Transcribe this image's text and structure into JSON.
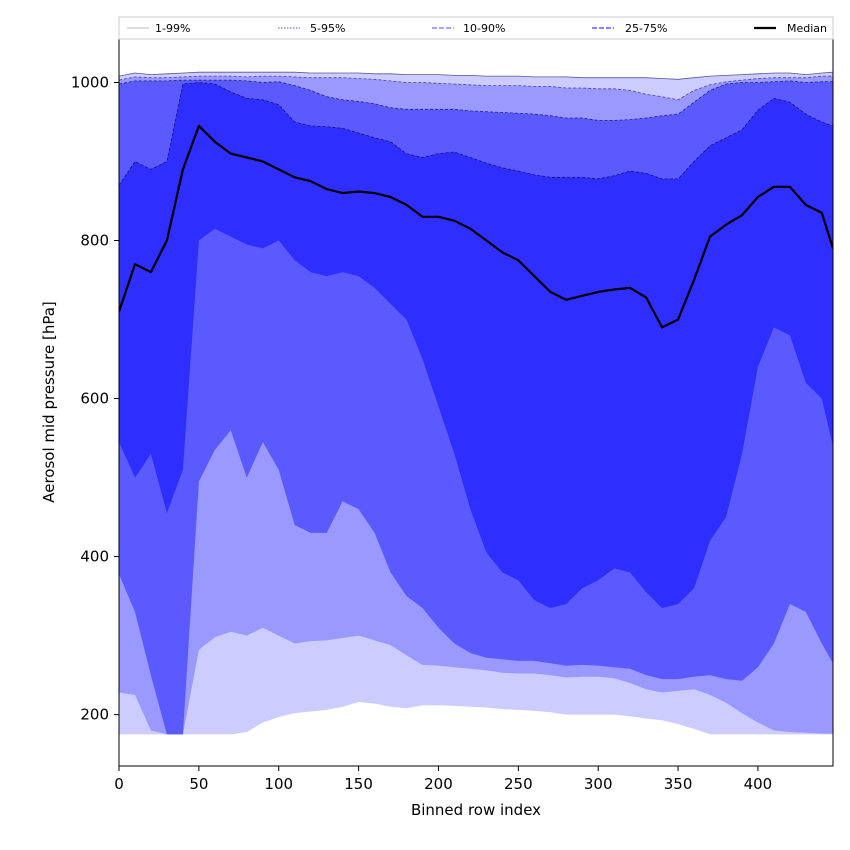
{
  "chart_data": {
    "type": "area",
    "xlabel": "Binned row index",
    "ylabel": "Aerosol mid pressure [hPa]",
    "xlim": [
      0,
      447
    ],
    "ylim": [
      135,
      1055
    ],
    "xticks": [
      0,
      50,
      100,
      150,
      200,
      250,
      300,
      350,
      400
    ],
    "yticks": [
      200,
      400,
      600,
      800,
      1000
    ],
    "grid": false,
    "legend_placement": "top, above plot",
    "x": [
      0,
      10,
      20,
      30,
      40,
      50,
      60,
      70,
      80,
      90,
      100,
      110,
      120,
      130,
      140,
      150,
      160,
      170,
      180,
      190,
      200,
      210,
      220,
      230,
      240,
      250,
      260,
      270,
      280,
      290,
      300,
      310,
      320,
      330,
      340,
      350,
      360,
      370,
      380,
      390,
      400,
      410,
      420,
      430,
      440,
      447
    ],
    "series": [
      {
        "name": "1-99%",
        "color": "#ccccff",
        "lower": [
          175,
          175,
          175,
          175,
          175,
          175,
          175,
          175,
          178,
          190,
          197,
          202,
          204,
          206,
          210,
          216,
          214,
          210,
          208,
          212,
          212,
          211,
          210,
          209,
          207,
          206,
          205,
          203,
          200,
          200,
          200,
          200,
          198,
          195,
          193,
          188,
          182,
          175,
          175,
          175,
          175,
          175,
          175,
          175,
          175,
          175
        ],
        "upper": [
          1008,
          1012,
          1010,
          1011,
          1012,
          1013,
          1013,
          1013,
          1013,
          1013,
          1013,
          1013,
          1012,
          1012,
          1012,
          1012,
          1011,
          1011,
          1010,
          1010,
          1010,
          1009,
          1009,
          1008,
          1008,
          1008,
          1007,
          1007,
          1007,
          1006,
          1006,
          1006,
          1006,
          1006,
          1005,
          1004,
          1006,
          1008,
          1009,
          1010,
          1011,
          1012,
          1012,
          1010,
          1012,
          1013
        ]
      },
      {
        "name": "5-95%",
        "color": "#9999ff",
        "lower": [
          228,
          225,
          180,
          175,
          175,
          282,
          298,
          305,
          300,
          310,
          300,
          290,
          293,
          294,
          297,
          300,
          294,
          288,
          275,
          263,
          262,
          260,
          258,
          256,
          253,
          252,
          252,
          250,
          247,
          248,
          248,
          246,
          240,
          232,
          228,
          230,
          232,
          225,
          215,
          202,
          190,
          180,
          178,
          177,
          176,
          176
        ],
        "upper": [
          1003,
          1007,
          1006,
          1006,
          1007,
          1008,
          1008,
          1008,
          1007,
          1008,
          1008,
          1007,
          1006,
          1006,
          1006,
          1005,
          1004,
          1002,
          1000,
          1000,
          999,
          998,
          997,
          996,
          996,
          996,
          995,
          995,
          993,
          993,
          992,
          992,
          990,
          985,
          982,
          978,
          990,
          997,
          1001,
          1003,
          1005,
          1006,
          1006,
          1006,
          1008,
          1008
        ]
      },
      {
        "name": "10-90%",
        "color": "#5a5aff",
        "lower": [
          378,
          330,
          250,
          175,
          175,
          495,
          535,
          560,
          500,
          545,
          510,
          440,
          430,
          430,
          470,
          460,
          430,
          380,
          350,
          335,
          310,
          290,
          278,
          272,
          270,
          268,
          268,
          265,
          262,
          263,
          262,
          260,
          258,
          250,
          245,
          245,
          248,
          250,
          245,
          243,
          260,
          290,
          340,
          330,
          290,
          265
        ],
        "upper": [
          998,
          1002,
          1002,
          1002,
          1003,
          1003,
          1003,
          1003,
          1002,
          1000,
          1001,
          996,
          990,
          982,
          978,
          976,
          973,
          968,
          966,
          966,
          966,
          966,
          964,
          963,
          962,
          961,
          960,
          958,
          955,
          955,
          952,
          952,
          953,
          955,
          958,
          960,
          975,
          990,
          998,
          1000,
          1000,
          1001,
          1002,
          1000,
          1001,
          1001
        ]
      },
      {
        "name": "25-75%",
        "color": "#2e2eff",
        "lower": [
          545,
          500,
          530,
          455,
          510,
          800,
          815,
          805,
          795,
          790,
          800,
          775,
          760,
          755,
          760,
          755,
          740,
          720,
          700,
          650,
          590,
          530,
          460,
          405,
          380,
          370,
          345,
          335,
          340,
          360,
          370,
          385,
          380,
          355,
          335,
          340,
          360,
          420,
          450,
          530,
          640,
          690,
          680,
          620,
          600,
          540
        ],
        "upper": [
          870,
          900,
          890,
          900,
          998,
          1000,
          998,
          988,
          980,
          978,
          972,
          950,
          945,
          944,
          942,
          936,
          930,
          925,
          910,
          905,
          910,
          912,
          905,
          898,
          892,
          888,
          883,
          880,
          880,
          880,
          878,
          882,
          888,
          885,
          878,
          878,
          900,
          920,
          930,
          940,
          965,
          980,
          975,
          960,
          950,
          945
        ]
      },
      {
        "name": "Median",
        "color": "#000000",
        "values": [
          710,
          770,
          760,
          800,
          890,
          945,
          925,
          910,
          905,
          900,
          890,
          880,
          875,
          865,
          860,
          862,
          860,
          855,
          845,
          830,
          830,
          825,
          815,
          800,
          785,
          775,
          755,
          735,
          725,
          730,
          735,
          738,
          740,
          728,
          690,
          700,
          750,
          805,
          820,
          832,
          855,
          868,
          868,
          845,
          835,
          790
        ]
      }
    ],
    "legend": [
      {
        "label": "1-99%",
        "color": "#cccccc",
        "style": "solid"
      },
      {
        "label": "5-95%",
        "color": "#7777bb",
        "style": "dotted"
      },
      {
        "label": "10-90%",
        "color": "#7070ff",
        "style": "dashed"
      },
      {
        "label": "25-75%",
        "color": "#3a3aff",
        "style": "dashed"
      },
      {
        "label": "Median",
        "color": "#000000",
        "style": "solid"
      }
    ]
  }
}
